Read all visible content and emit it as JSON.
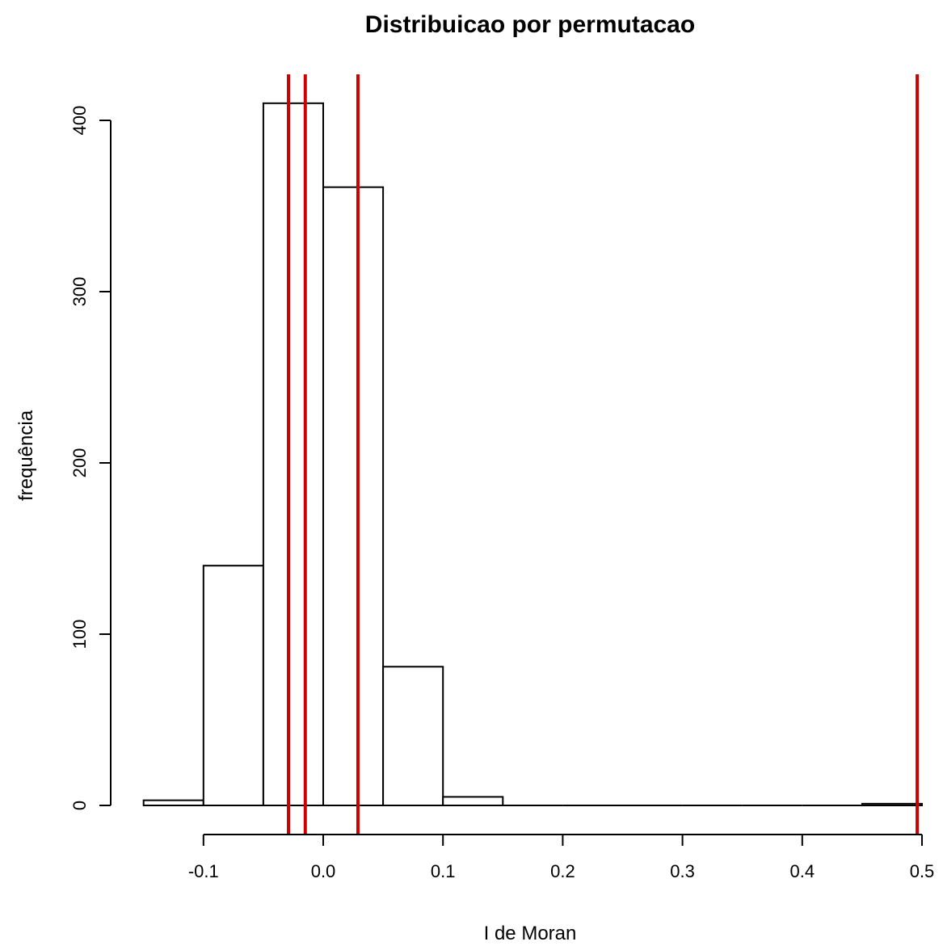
{
  "chart_data": {
    "type": "bar",
    "title": "Distribuicao por permutacao",
    "xlabel": "I de Moran",
    "ylabel": "frequência",
    "bins": [
      {
        "x0": -0.15,
        "x1": -0.1,
        "count": 3
      },
      {
        "x0": -0.1,
        "x1": -0.05,
        "count": 140
      },
      {
        "x0": -0.05,
        "x1": 0.0,
        "count": 410
      },
      {
        "x0": 0.0,
        "x1": 0.05,
        "count": 361
      },
      {
        "x0": 0.05,
        "x1": 0.1,
        "count": 81
      },
      {
        "x0": 0.1,
        "x1": 0.15,
        "count": 5
      },
      {
        "x0": 0.15,
        "x1": 0.2,
        "count": 0
      },
      {
        "x0": 0.2,
        "x1": 0.25,
        "count": 0
      },
      {
        "x0": 0.25,
        "x1": 0.3,
        "count": 0
      },
      {
        "x0": 0.3,
        "x1": 0.35,
        "count": 0
      },
      {
        "x0": 0.35,
        "x1": 0.4,
        "count": 0
      },
      {
        "x0": 0.4,
        "x1": 0.45,
        "count": 0
      },
      {
        "x0": 0.45,
        "x1": 0.5,
        "count": 1
      }
    ],
    "reference_lines": [
      -0.029,
      -0.015,
      0.029,
      0.496
    ],
    "reference_line_color": "#cc0000",
    "xlim": [
      -0.15,
      0.5
    ],
    "ylim": [
      0,
      410
    ],
    "x_ticks": [
      -0.1,
      0.0,
      0.1,
      0.2,
      0.3,
      0.4,
      0.5
    ],
    "x_tick_labels": [
      "-0.1",
      "0.0",
      "0.1",
      "0.2",
      "0.3",
      "0.4",
      "0.5"
    ],
    "y_ticks": [
      0,
      100,
      200,
      300,
      400
    ],
    "y_tick_labels": [
      "0",
      "100",
      "200",
      "300",
      "400"
    ],
    "grid": false,
    "legend": "none"
  }
}
